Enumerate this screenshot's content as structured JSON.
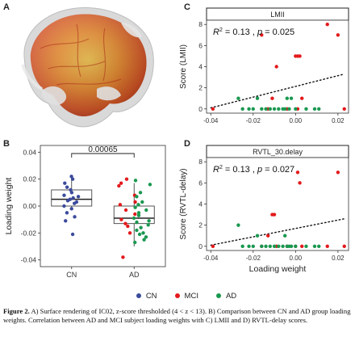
{
  "panels": {
    "a": "A",
    "b": "B",
    "c": "C",
    "d": "D"
  },
  "legend": {
    "title": "",
    "items": [
      {
        "label": "CN",
        "color": "#3b4a9c"
      },
      {
        "label": "MCI",
        "color": "#e31a1c"
      },
      {
        "label": "AD",
        "color": "#1a9850"
      }
    ]
  },
  "caption": {
    "lead": "Figure 2.",
    "text": " A) Surface rendering of IC02, z-score thresholded (4 < z < 13). B) Comparison between CN and AD group loading weights. Correlation between AD and MCI subject loading weights with C) LMII and D) RVTL-delay scores."
  },
  "chart_data": [
    {
      "id": "B",
      "type": "box",
      "ylabel": "Loading weight",
      "xlabel": "",
      "categories": [
        "CN",
        "AD"
      ],
      "ylim": [
        -0.045,
        0.045
      ],
      "yticks": [
        -0.04,
        -0.02,
        0.0,
        0.02,
        0.04
      ],
      "ytick_labels": [
        "-0.04",
        "-0.02",
        "0.00",
        "0.02",
        "0.04"
      ],
      "significance": "0.00065",
      "boxes": [
        {
          "category": "CN",
          "min": -0.003,
          "q1": 0.0,
          "median": 0.005,
          "q3": 0.012,
          "max": 0.022
        },
        {
          "category": "AD",
          "min": -0.03,
          "q1": -0.013,
          "median": -0.009,
          "q3": 0.0,
          "max": 0.017
        }
      ],
      "points": [
        {
          "category": "CN",
          "group": "CN",
          "values": [
            0.022,
            0.02,
            0.017,
            0.014,
            0.012,
            0.01,
            0.008,
            0.007,
            0.006,
            0.005,
            0.004,
            0.003,
            0.002,
            0.0,
            -0.002,
            -0.005,
            -0.008,
            -0.011,
            -0.021
          ]
        },
        {
          "category": "AD",
          "group": "MCI",
          "values": [
            0.02,
            0.017,
            0.015,
            0.008,
            0.003,
            0.001,
            -0.003,
            -0.006,
            -0.01,
            -0.013,
            -0.015,
            -0.02,
            -0.038
          ]
        },
        {
          "category": "AD",
          "group": "AD",
          "values": [
            0.019,
            0.016,
            0.01,
            0.007,
            0.003,
            0.001,
            -0.001,
            -0.003,
            -0.005,
            -0.007,
            -0.009,
            -0.011,
            -0.012,
            -0.014,
            -0.016,
            -0.018,
            -0.02,
            -0.021,
            -0.023,
            -0.025,
            -0.027
          ]
        }
      ]
    },
    {
      "id": "C",
      "type": "scatter",
      "strip_title": "LMII",
      "ylabel": "Score (LMII)",
      "xlabel": "",
      "xlim": [
        -0.042,
        0.025
      ],
      "ylim": [
        -0.4,
        8.4
      ],
      "xticks": [
        -0.04,
        -0.02,
        0.0,
        0.02
      ],
      "xtick_labels": [
        "-0.04",
        "-0.02",
        "0.00",
        "0.02"
      ],
      "yticks": [
        0,
        2,
        4,
        6,
        8
      ],
      "ytick_labels": [
        "0",
        "2",
        "4",
        "6",
        "8"
      ],
      "annotation": {
        "r2": "0.13",
        "p": "0.025"
      },
      "trend": {
        "x": [
          -0.04,
          0.023
        ],
        "y": [
          0.1,
          3.3
        ]
      },
      "series": [
        {
          "name": "MCI",
          "color": "#e31a1c",
          "x": [
            -0.039,
            -0.016,
            -0.013,
            -0.011,
            -0.009,
            -0.004,
            0.0,
            0.001,
            0.001,
            0.002,
            0.003,
            0.015,
            0.02,
            0.023
          ],
          "y": [
            0,
            7,
            0,
            1,
            4,
            0,
            5,
            0,
            5,
            5,
            1,
            8,
            7,
            0
          ]
        },
        {
          "name": "AD",
          "color": "#1a9850",
          "x": [
            -0.027,
            -0.025,
            -0.022,
            -0.02,
            -0.018,
            -0.016,
            -0.014,
            -0.012,
            -0.01,
            -0.008,
            -0.006,
            -0.005,
            -0.004,
            -0.003,
            -0.002,
            0.0,
            0.005,
            0.009,
            0.011
          ],
          "y": [
            1,
            0,
            0,
            0,
            1,
            0,
            0,
            0,
            0,
            0,
            0,
            0,
            1,
            0,
            1,
            0,
            0,
            0,
            0
          ]
        }
      ]
    },
    {
      "id": "D",
      "type": "scatter",
      "strip_title": "RVTL_30.delay",
      "ylabel": "Score (RVTL-delay)",
      "xlabel": "Loading weight",
      "xlim": [
        -0.042,
        0.025
      ],
      "ylim": [
        -0.4,
        8.4
      ],
      "xticks": [
        -0.04,
        -0.02,
        0.0,
        0.02
      ],
      "xtick_labels": [
        "-0.04",
        "-0.02",
        "0.00",
        "0.02"
      ],
      "yticks": [
        0,
        2,
        4,
        6,
        8
      ],
      "ytick_labels": [
        "0",
        "2",
        "4",
        "6",
        "8"
      ],
      "annotation": {
        "r2": "0.13",
        "p": "0.027"
      },
      "trend": {
        "x": [
          -0.04,
          0.023
        ],
        "y": [
          0.1,
          2.6
        ]
      },
      "series": [
        {
          "name": "MCI",
          "color": "#e31a1c",
          "x": [
            -0.039,
            -0.016,
            -0.013,
            -0.011,
            -0.01,
            -0.009,
            -0.004,
            0.0,
            0.001,
            0.002,
            0.003,
            0.015,
            0.02,
            0.023
          ],
          "y": [
            0,
            0,
            1,
            3,
            3,
            0,
            0,
            0,
            7,
            6,
            0,
            0,
            7,
            0
          ]
        },
        {
          "name": "AD",
          "color": "#1a9850",
          "x": [
            -0.027,
            -0.025,
            -0.022,
            -0.02,
            -0.018,
            -0.016,
            -0.014,
            -0.012,
            -0.01,
            -0.008,
            -0.006,
            -0.005,
            -0.004,
            -0.003,
            -0.002,
            0.0,
            0.005,
            0.009,
            0.011
          ],
          "y": [
            2,
            0,
            0,
            0,
            1,
            0,
            0,
            0,
            0,
            0,
            0,
            1,
            0,
            0,
            0,
            0,
            0,
            0,
            0
          ]
        }
      ]
    }
  ]
}
